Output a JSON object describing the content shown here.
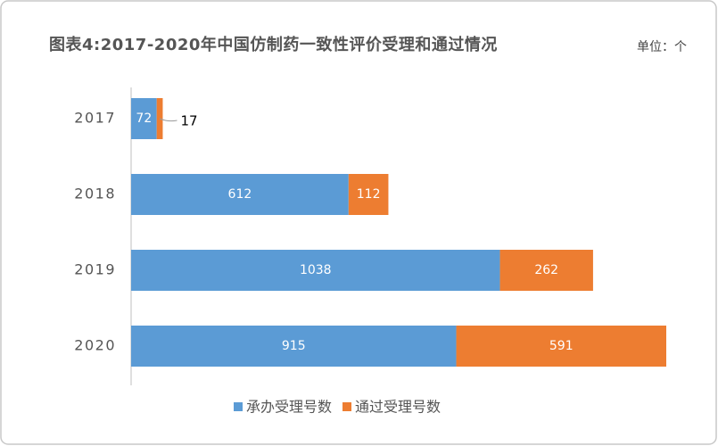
{
  "chart_data": {
    "type": "stacked_barh",
    "title": "图表4:2017-2020年中国仿制药一致性评价受理和通过情况",
    "unit": "单位：个",
    "categories": [
      "2017",
      "2018",
      "2019",
      "2020"
    ],
    "series": [
      {
        "name": "承办受理号数",
        "color": "#5b9bd5",
        "values": [
          72,
          612,
          1038,
          915
        ]
      },
      {
        "name": "通过受理号数",
        "color": "#ed7d31",
        "values": [
          17,
          112,
          262,
          591
        ]
      }
    ]
  }
}
